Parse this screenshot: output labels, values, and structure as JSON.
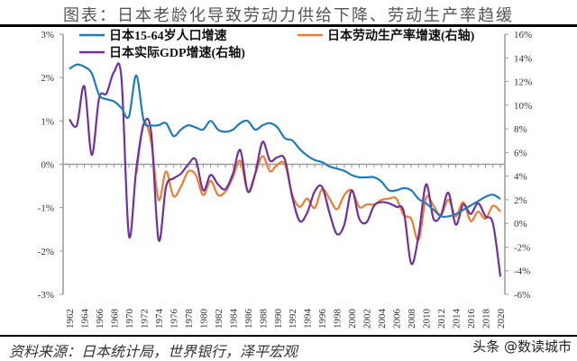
{
  "title": "图表：日本老龄化导致劳动力供给下降、劳动生产率趋缓",
  "source": "资料来源：日本统计局，世界银行，泽平宏观",
  "watermark": "头条 @数读城市",
  "chart_data": {
    "type": "line",
    "title": "图表：日本老龄化导致劳动力供给下降、劳动生产率趋缓",
    "legend_position": "top",
    "grid": false,
    "left_axis": {
      "ylim": [
        -3,
        3
      ],
      "ticks": [
        "-3%",
        "-2%",
        "-1%",
        "0%",
        "1%",
        "2%",
        "3%"
      ]
    },
    "right_axis": {
      "ylim": [
        -6,
        16
      ],
      "ticks": [
        "-6%",
        "-4%",
        "-2%",
        "0%",
        "2%",
        "4%",
        "6%",
        "8%",
        "10%",
        "12%",
        "14%",
        "16%"
      ]
    },
    "x_tick_labels": [
      "1962",
      "1964",
      "1966",
      "1968",
      "1970",
      "1972",
      "1974",
      "1976",
      "1978",
      "1980",
      "1982",
      "1984",
      "1986",
      "1988",
      "1990",
      "1992",
      "1994",
      "1996",
      "1998",
      "2000",
      "2002",
      "2004",
      "2006",
      "2008",
      "2010",
      "2012",
      "2014",
      "2016",
      "2018",
      "2020"
    ],
    "series": [
      {
        "name": "日本15-64岁人口增速",
        "axis": "left",
        "color": "#1f7bc0",
        "start_year": 1962,
        "values": [
          2.2,
          2.3,
          2.25,
          2.1,
          1.6,
          1.5,
          1.45,
          1.3,
          1.1,
          2.05,
          1.0,
          0.9,
          0.9,
          0.95,
          0.65,
          0.8,
          0.9,
          0.85,
          0.8,
          1.0,
          0.8,
          0.75,
          0.8,
          0.95,
          1.0,
          0.8,
          0.9,
          0.95,
          0.85,
          0.6,
          0.55,
          0.35,
          0.2,
          0.1,
          0.05,
          -0.05,
          -0.1,
          -0.15,
          -0.25,
          -0.3,
          -0.3,
          -0.3,
          -0.4,
          -0.6,
          -0.6,
          -0.55,
          -0.6,
          -0.8,
          -0.9,
          -1.05,
          -1.2,
          -1.2,
          -1.15,
          -1.05,
          -0.95,
          -0.85,
          -0.75,
          -0.7,
          -0.8
        ]
      },
      {
        "name": "日本劳动生产率增速(右轴)",
        "axis": "right",
        "color": "#ed7d31",
        "start_year": 1971,
        "values": [
          4.2,
          8.4,
          6.9,
          2.0,
          4.4,
          2.3,
          3.1,
          4.4,
          4.1,
          2.4,
          3.6,
          2.4,
          2.7,
          3.9,
          5.3,
          2.7,
          4.2,
          5.7,
          4.4,
          5.0,
          5.0,
          2.4,
          1.4,
          2.1,
          1.3,
          2.9,
          2.1,
          1.2,
          2.4,
          2.8,
          1.4,
          1.6,
          1.6,
          2.0,
          2.1,
          2.1,
          0.7,
          0.4,
          -1.4,
          2.2,
          1.5,
          0.7,
          2.0,
          0.6,
          1.8,
          0.2,
          1.0,
          0.4,
          1.5,
          1.0
        ]
      },
      {
        "name": "日本实际GDP增速(右轴)",
        "axis": "right",
        "color": "#7030a0",
        "start_year": 1962,
        "values": [
          8.8,
          8.3,
          11.6,
          5.8,
          10.6,
          11.0,
          12.8,
          12.3,
          -1.0,
          4.6,
          8.4,
          7.7,
          -1.4,
          3.1,
          3.8,
          4.2,
          5.0,
          5.4,
          2.8,
          4.1,
          3.3,
          2.9,
          4.2,
          6.2,
          2.7,
          4.2,
          6.9,
          5.3,
          5.6,
          5.4,
          2.2,
          0.2,
          0.9,
          2.7,
          3.1,
          0.9,
          -0.9,
          -0.1,
          2.8,
          0.4,
          0.1,
          1.5,
          1.8,
          1.7,
          1.4,
          1.0,
          -3.4,
          -1.0,
          3.3,
          0.4,
          0.7,
          2.6,
          -0.1,
          1.6,
          0.8,
          1.7,
          0.6,
          0.0,
          -4.5
        ]
      }
    ]
  }
}
